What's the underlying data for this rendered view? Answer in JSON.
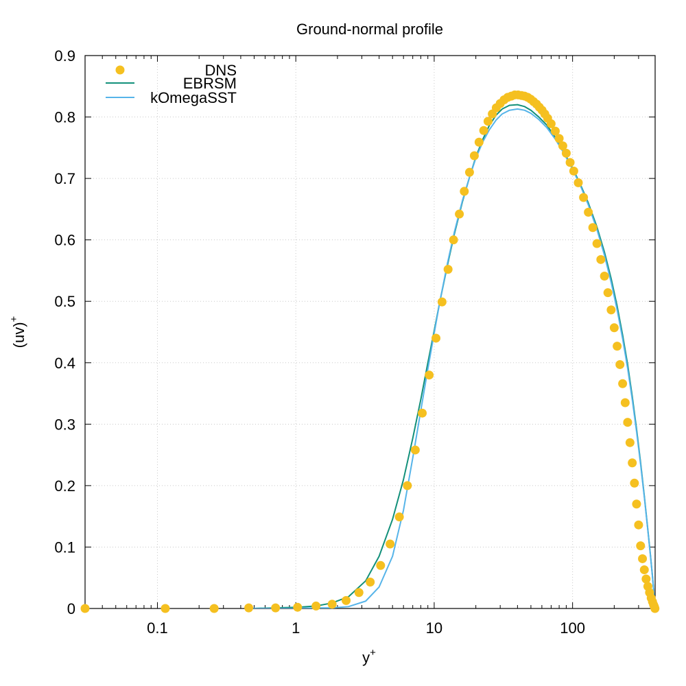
{
  "chart_data": {
    "type": "line",
    "title": "Ground-normal profile",
    "xlabel": "y",
    "xlabel_sup": "+",
    "ylabel": "(uv)",
    "ylabel_sup": "+",
    "xscale": "log",
    "xlim": [
      0.03,
      395
    ],
    "ylim": [
      0,
      0.9
    ],
    "grid": true,
    "legend_position": "top-left",
    "xticks": [
      {
        "value": 0.1,
        "label": "0.1"
      },
      {
        "value": 1,
        "label": "1"
      },
      {
        "value": 10,
        "label": "10"
      },
      {
        "value": 100,
        "label": "100"
      }
    ],
    "yticks": [
      {
        "value": 0,
        "label": "0"
      },
      {
        "value": 0.1,
        "label": "0.1"
      },
      {
        "value": 0.2,
        "label": "0.2"
      },
      {
        "value": 0.3,
        "label": "0.3"
      },
      {
        "value": 0.4,
        "label": "0.4"
      },
      {
        "value": 0.5,
        "label": "0.5"
      },
      {
        "value": 0.6,
        "label": "0.6"
      },
      {
        "value": 0.7,
        "label": "0.7"
      },
      {
        "value": 0.8,
        "label": "0.8"
      },
      {
        "value": 0.9,
        "label": "0.9"
      }
    ],
    "series": [
      {
        "name": "DNS",
        "style": "points",
        "color": "#f5c020",
        "x": [
          0.03,
          0.114,
          0.257,
          0.457,
          0.714,
          1.03,
          1.4,
          1.83,
          2.31,
          2.86,
          3.45,
          4.1,
          4.8,
          5.6,
          6.4,
          7.3,
          8.2,
          9.2,
          10.3,
          11.4,
          12.6,
          13.8,
          15.2,
          16.5,
          18.0,
          19.5,
          21.1,
          22.8,
          24.5,
          26.3,
          28.1,
          30.0,
          32.0,
          34.0,
          36.1,
          38.2,
          40.4,
          42.7,
          45.0,
          47.4,
          49.8,
          52.3,
          54.9,
          57.5,
          60.2,
          63.0,
          66.0,
          70.0,
          75.0,
          80.0,
          85.0,
          90.0,
          96.0,
          102.0,
          110.0,
          120.0,
          130.0,
          140.0,
          150.0,
          160.0,
          170.0,
          180.0,
          190.0,
          200.0,
          210.0,
          220.0,
          230.0,
          240.0,
          250.0,
          260.0,
          270.0,
          280.0,
          290.0,
          300.0,
          310.0,
          320.0,
          330.0,
          340.0,
          350.0,
          360.0,
          370.0,
          378.0,
          385.0,
          390.0,
          394.0
        ],
        "values": [
          0.0,
          0.0,
          0.0,
          0.001,
          0.001,
          0.002,
          0.004,
          0.007,
          0.013,
          0.026,
          0.043,
          0.07,
          0.105,
          0.149,
          0.2,
          0.258,
          0.318,
          0.38,
          0.44,
          0.499,
          0.552,
          0.6,
          0.642,
          0.679,
          0.71,
          0.737,
          0.759,
          0.778,
          0.793,
          0.805,
          0.815,
          0.822,
          0.828,
          0.832,
          0.834,
          0.836,
          0.836,
          0.835,
          0.834,
          0.832,
          0.829,
          0.825,
          0.821,
          0.816,
          0.811,
          0.805,
          0.798,
          0.789,
          0.777,
          0.765,
          0.753,
          0.741,
          0.726,
          0.712,
          0.693,
          0.669,
          0.645,
          0.62,
          0.594,
          0.568,
          0.541,
          0.514,
          0.486,
          0.457,
          0.427,
          0.397,
          0.366,
          0.335,
          0.303,
          0.27,
          0.237,
          0.204,
          0.17,
          0.136,
          0.102,
          0.081,
          0.063,
          0.048,
          0.036,
          0.026,
          0.017,
          0.011,
          0.006,
          0.003,
          0.0
        ]
      },
      {
        "name": "EBRSM",
        "style": "line",
        "color": "#12907a",
        "x": [
          0.457,
          0.714,
          1.03,
          1.4,
          1.83,
          2.4,
          3.2,
          4.0,
          5.0,
          6.0,
          7.0,
          8.0,
          9.0,
          10.0,
          11.0,
          12.5,
          14.0,
          16.0,
          18.0,
          20.0,
          22.5,
          25.0,
          28.0,
          31.0,
          35.0,
          40.0,
          45.0,
          50.0,
          57.0,
          65.0,
          75.0,
          85.0,
          100.0,
          115.0,
          130.0,
          150.0,
          170.0,
          190.0,
          210.0,
          230.0,
          250.0,
          270.0,
          290.0,
          310.0,
          330.0,
          350.0,
          365.0,
          378.0,
          388.0,
          395.0
        ],
        "values": [
          0.0,
          0.001,
          0.002,
          0.004,
          0.009,
          0.019,
          0.045,
          0.085,
          0.145,
          0.21,
          0.277,
          0.34,
          0.4,
          0.452,
          0.5,
          0.56,
          0.61,
          0.662,
          0.702,
          0.735,
          0.764,
          0.786,
          0.803,
          0.813,
          0.819,
          0.82,
          0.817,
          0.811,
          0.8,
          0.787,
          0.767,
          0.746,
          0.717,
          0.688,
          0.66,
          0.621,
          0.58,
          0.537,
          0.492,
          0.445,
          0.397,
          0.345,
          0.292,
          0.238,
          0.183,
          0.128,
          0.088,
          0.052,
          0.022,
          0.0
        ]
      },
      {
        "name": "kOmegaSST",
        "style": "line",
        "color": "#56b4e9",
        "x": [
          0.457,
          0.714,
          1.03,
          1.4,
          1.83,
          2.4,
          3.2,
          4.0,
          5.0,
          6.0,
          7.0,
          8.0,
          9.0,
          10.0,
          11.0,
          12.5,
          14.0,
          16.0,
          18.0,
          20.0,
          22.5,
          25.0,
          28.0,
          31.0,
          35.0,
          40.0,
          45.0,
          50.0,
          57.0,
          65.0,
          75.0,
          85.0,
          100.0,
          115.0,
          130.0,
          150.0,
          170.0,
          190.0,
          210.0,
          230.0,
          250.0,
          270.0,
          290.0,
          310.0,
          330.0,
          350.0,
          365.0,
          378.0,
          388.0,
          395.0
        ],
        "values": [
          0.0,
          0.0,
          0.0,
          0.001,
          0.001,
          0.003,
          0.012,
          0.035,
          0.085,
          0.16,
          0.245,
          0.322,
          0.39,
          0.448,
          0.5,
          0.563,
          0.613,
          0.664,
          0.702,
          0.733,
          0.76,
          0.779,
          0.795,
          0.805,
          0.811,
          0.813,
          0.811,
          0.806,
          0.796,
          0.783,
          0.764,
          0.744,
          0.715,
          0.686,
          0.657,
          0.617,
          0.575,
          0.531,
          0.486,
          0.439,
          0.391,
          0.34,
          0.288,
          0.235,
          0.181,
          0.127,
          0.087,
          0.052,
          0.022,
          0.0
        ]
      }
    ]
  }
}
